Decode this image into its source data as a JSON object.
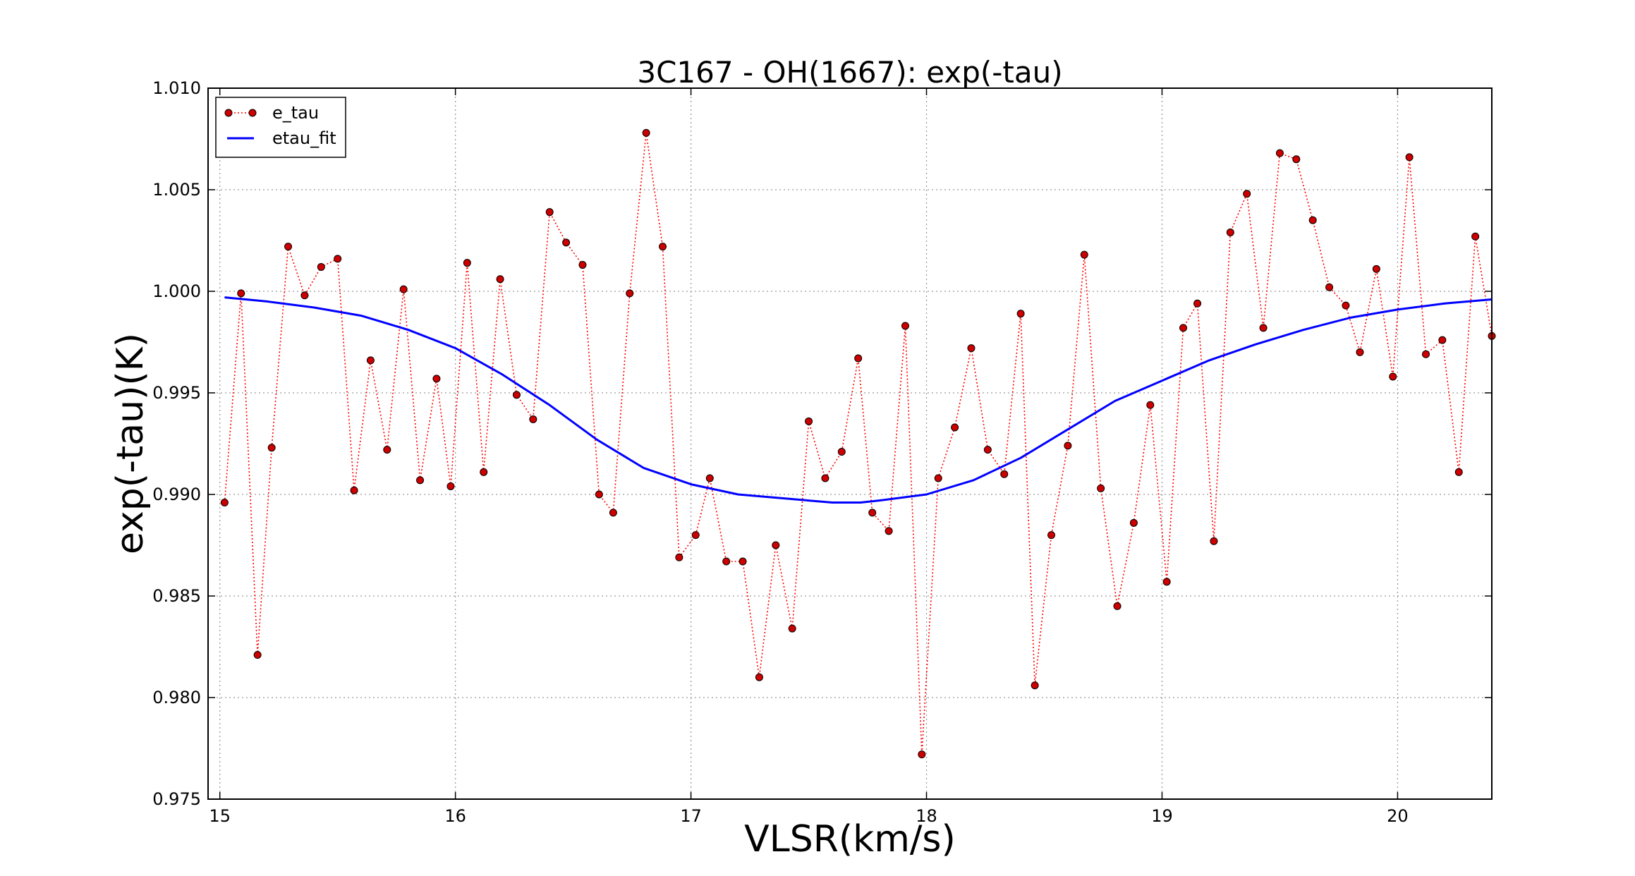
{
  "chart_data": {
    "type": "line",
    "title": "3C167 - OH(1667): exp(-tau)",
    "xlabel": "VLSR(km/s)",
    "ylabel": "exp(-tau)(K)",
    "xlim": [
      14.95,
      20.4
    ],
    "ylim": [
      0.975,
      1.01
    ],
    "xticks": [
      15,
      16,
      17,
      18,
      19,
      20
    ],
    "yticks": [
      0.975,
      0.98,
      0.985,
      0.99,
      0.995,
      1.0,
      1.005,
      1.01
    ],
    "xtick_labels": [
      "15",
      "16",
      "17",
      "18",
      "19",
      "20"
    ],
    "ytick_labels": [
      "0.975",
      "0.980",
      "0.985",
      "0.990",
      "0.995",
      "1.000",
      "1.005",
      "1.010"
    ],
    "grid": true,
    "legend_position": "top-left",
    "series": [
      {
        "name": "e_tau",
        "style": "dotted-markers",
        "color": "#ff0000",
        "marker_color": "#cc0000",
        "points": [
          [
            15.02,
            0.9896
          ],
          [
            15.09,
            0.9999
          ],
          [
            15.16,
            0.9821
          ],
          [
            15.22,
            0.9923
          ],
          [
            15.29,
            1.0022
          ],
          [
            15.36,
            0.9998
          ],
          [
            15.43,
            1.0012
          ],
          [
            15.5,
            1.0016
          ],
          [
            15.57,
            0.9902
          ],
          [
            15.64,
            0.9966
          ],
          [
            15.71,
            0.9922
          ],
          [
            15.78,
            1.0001
          ],
          [
            15.85,
            0.9907
          ],
          [
            15.92,
            0.9957
          ],
          [
            15.98,
            0.9904
          ],
          [
            16.05,
            1.0014
          ],
          [
            16.12,
            0.9911
          ],
          [
            16.19,
            1.0006
          ],
          [
            16.26,
            0.9949
          ],
          [
            16.33,
            0.9937
          ],
          [
            16.4,
            1.0039
          ],
          [
            16.47,
            1.0024
          ],
          [
            16.54,
            1.0013
          ],
          [
            16.61,
            0.99
          ],
          [
            16.67,
            0.9891
          ],
          [
            16.74,
            0.9999
          ],
          [
            16.81,
            1.0078
          ],
          [
            16.88,
            1.0022
          ],
          [
            16.95,
            0.9869
          ],
          [
            17.02,
            0.988
          ],
          [
            17.08,
            0.9908
          ],
          [
            17.15,
            0.9867
          ],
          [
            17.22,
            0.9867
          ],
          [
            17.29,
            0.981
          ],
          [
            17.36,
            0.9875
          ],
          [
            17.43,
            0.9834
          ],
          [
            17.5,
            0.9936
          ],
          [
            17.57,
            0.9908
          ],
          [
            17.64,
            0.9921
          ],
          [
            17.71,
            0.9967
          ],
          [
            17.77,
            0.9891
          ],
          [
            17.84,
            0.9882
          ],
          [
            17.91,
            0.9983
          ],
          [
            17.98,
            0.9772
          ],
          [
            18.05,
            0.9908
          ],
          [
            18.12,
            0.9933
          ],
          [
            18.19,
            0.9972
          ],
          [
            18.26,
            0.9922
          ],
          [
            18.33,
            0.991
          ],
          [
            18.4,
            0.9989
          ],
          [
            18.46,
            0.9806
          ],
          [
            18.53,
            0.988
          ],
          [
            18.6,
            0.9924
          ],
          [
            18.67,
            1.0018
          ],
          [
            18.74,
            0.9903
          ],
          [
            18.81,
            0.9845
          ],
          [
            18.88,
            0.9886
          ],
          [
            18.95,
            0.9944
          ],
          [
            19.02,
            0.9857
          ],
          [
            19.09,
            0.9982
          ],
          [
            19.15,
            0.9994
          ],
          [
            19.22,
            0.9877
          ],
          [
            19.29,
            1.0029
          ],
          [
            19.36,
            1.0048
          ],
          [
            19.43,
            0.9982
          ],
          [
            19.5,
            1.0068
          ],
          [
            19.57,
            1.0065
          ],
          [
            19.64,
            1.0035
          ],
          [
            19.71,
            1.0002
          ],
          [
            19.78,
            0.9993
          ],
          [
            19.84,
            0.997
          ],
          [
            19.91,
            1.0011
          ],
          [
            19.98,
            0.9958
          ],
          [
            20.05,
            1.0066
          ],
          [
            20.12,
            0.9969
          ],
          [
            20.19,
            0.9976
          ],
          [
            20.26,
            0.9911
          ],
          [
            20.33,
            1.0027
          ],
          [
            20.4,
            0.9978
          ]
        ]
      },
      {
        "name": "etau_fit",
        "style": "solid-line",
        "color": "#0000ff",
        "points": [
          [
            15.02,
            0.9997
          ],
          [
            15.2,
            0.9995
          ],
          [
            15.4,
            0.9992
          ],
          [
            15.6,
            0.9988
          ],
          [
            15.8,
            0.9981
          ],
          [
            16.0,
            0.9972
          ],
          [
            16.2,
            0.9959
          ],
          [
            16.4,
            0.9944
          ],
          [
            16.6,
            0.9927
          ],
          [
            16.8,
            0.9913
          ],
          [
            17.0,
            0.9905
          ],
          [
            17.2,
            0.99
          ],
          [
            17.4,
            0.9898
          ],
          [
            17.6,
            0.9896
          ],
          [
            17.72,
            0.9896
          ],
          [
            17.8,
            0.9897
          ],
          [
            18.0,
            0.99
          ],
          [
            18.2,
            0.9907
          ],
          [
            18.4,
            0.9918
          ],
          [
            18.6,
            0.9932
          ],
          [
            18.8,
            0.9946
          ],
          [
            19.0,
            0.9956
          ],
          [
            19.2,
            0.9966
          ],
          [
            19.4,
            0.9974
          ],
          [
            19.6,
            0.9981
          ],
          [
            19.8,
            0.9987
          ],
          [
            20.0,
            0.9991
          ],
          [
            20.2,
            0.9994
          ],
          [
            20.4,
            0.9996
          ]
        ]
      }
    ]
  }
}
